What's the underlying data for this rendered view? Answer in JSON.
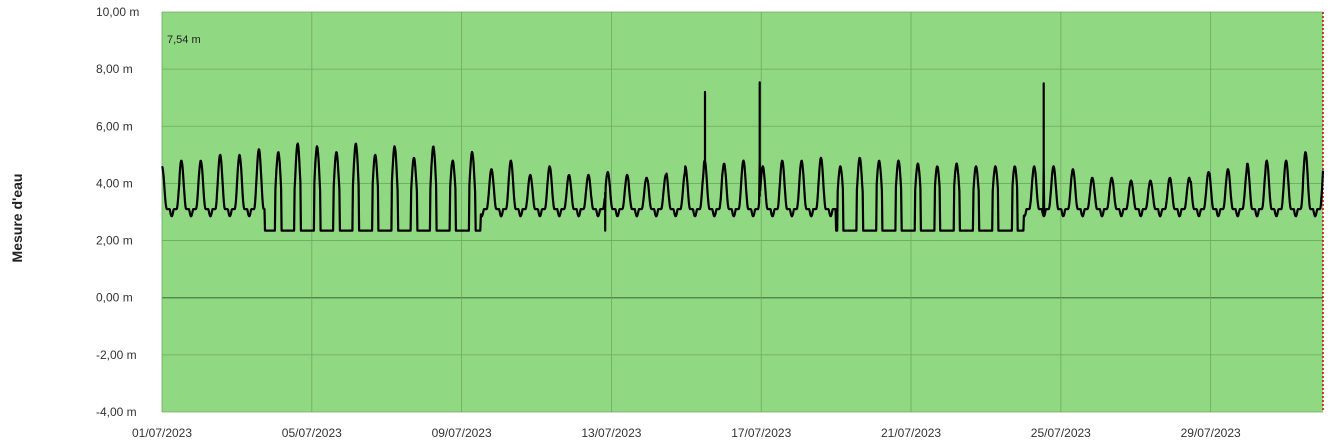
{
  "chart_data": {
    "type": "line",
    "title": "",
    "xlabel": "",
    "ylabel": "Mesure d'eau",
    "ylim": [
      -4,
      10
    ],
    "xlim": [
      "2023-07-01",
      "2023-08-01"
    ],
    "y_ticks": [
      {
        "value": 10,
        "label": "10,00 m"
      },
      {
        "value": 8,
        "label": "8,00 m"
      },
      {
        "value": 6,
        "label": "6,00 m"
      },
      {
        "value": 4,
        "label": "4,00 m"
      },
      {
        "value": 2,
        "label": "2,00 m"
      },
      {
        "value": 0,
        "label": "0,00 m"
      },
      {
        "value": -2,
        "label": "-2,00 m"
      },
      {
        "value": -4,
        "label": "-4,00 m"
      }
    ],
    "x_ticks": [
      {
        "date": "2023-07-01",
        "label": "01/07/2023"
      },
      {
        "date": "2023-07-05",
        "label": "05/07/2023"
      },
      {
        "date": "2023-07-09",
        "label": "09/07/2023"
      },
      {
        "date": "2023-07-13",
        "label": "13/07/2023"
      },
      {
        "date": "2023-07-17",
        "label": "17/07/2023"
      },
      {
        "date": "2023-07-21",
        "label": "21/07/2023"
      },
      {
        "date": "2023-07-25",
        "label": "25/07/2023"
      },
      {
        "date": "2023-07-29",
        "label": "29/07/2023"
      }
    ],
    "grid": true,
    "background_color": "#90d882",
    "grid_color": "#6fa863",
    "zero_line_color": "#4a7a44",
    "line_color": "#000000",
    "end_marker_color": "#cc0000",
    "annotation": "7,54 m",
    "series": [
      {
        "daily_peaks": [
          {
            "date": "2023-07-01",
            "peaks": [
              4.6,
              4.8
            ]
          },
          {
            "date": "2023-07-02",
            "peaks": [
              4.8,
              5.0
            ]
          },
          {
            "date": "2023-07-03",
            "peaks": [
              5.0,
              5.2
            ]
          },
          {
            "date": "2023-07-04",
            "peaks": [
              5.1,
              5.4
            ]
          },
          {
            "date": "2023-07-05",
            "peaks": [
              5.3,
              5.1
            ]
          },
          {
            "date": "2023-07-06",
            "peaks": [
              5.4,
              5.0
            ]
          },
          {
            "date": "2023-07-07",
            "peaks": [
              5.3,
              4.9
            ]
          },
          {
            "date": "2023-07-08",
            "peaks": [
              5.3,
              4.8
            ]
          },
          {
            "date": "2023-07-09",
            "peaks": [
              5.1,
              4.5
            ]
          },
          {
            "date": "2023-07-10",
            "peaks": [
              4.8,
              4.3
            ]
          },
          {
            "date": "2023-07-11",
            "peaks": [
              4.6,
              4.3
            ]
          },
          {
            "date": "2023-07-12",
            "peaks": [
              4.3,
              4.4
            ]
          },
          {
            "date": "2023-07-13",
            "peaks": [
              4.3,
              4.2
            ]
          },
          {
            "date": "2023-07-14",
            "peaks": [
              4.3,
              4.4
            ]
          },
          {
            "date": "2023-07-15",
            "peaks": [
              4.6,
              4.8
            ]
          },
          {
            "date": "2023-07-16",
            "peaks": [
              4.7,
              4.8
            ]
          },
          {
            "date": "2023-07-17",
            "peaks": [
              4.6,
              4.8
            ]
          },
          {
            "date": "2023-07-18",
            "peaks": [
              4.8,
              4.9
            ]
          },
          {
            "date": "2023-07-19",
            "peaks": [
              4.6,
              4.9
            ]
          },
          {
            "date": "2023-07-20",
            "peaks": [
              4.8,
              4.8
            ]
          },
          {
            "date": "2023-07-21",
            "peaks": [
              4.7,
              4.6
            ]
          },
          {
            "date": "2023-07-22",
            "peaks": [
              4.7,
              4.6
            ]
          },
          {
            "date": "2023-07-23",
            "peaks": [
              4.6,
              4.6
            ]
          },
          {
            "date": "2023-07-24",
            "peaks": [
              4.6,
              4.6
            ]
          },
          {
            "date": "2023-07-25",
            "peaks": [
              4.5,
              4.2
            ]
          },
          {
            "date": "2023-07-26",
            "peaks": [
              4.2,
              4.1
            ]
          },
          {
            "date": "2023-07-27",
            "peaks": [
              4.1,
              4.2
            ]
          },
          {
            "date": "2023-07-28",
            "peaks": [
              4.2,
              4.4
            ]
          },
          {
            "date": "2023-07-29",
            "peaks": [
              4.5,
              4.5
            ]
          },
          {
            "date": "2023-07-30",
            "peaks": [
              4.7,
              4.8
            ]
          },
          {
            "date": "2023-07-31",
            "peaks": [
              4.8,
              5.1
            ]
          }
        ],
        "troughs_min": 2.35,
        "baseline_low": 3.1,
        "spikes": [
          {
            "date": "2023-07-15T12:00",
            "value": 7.2
          },
          {
            "date": "2023-07-16T23:00",
            "value": 7.54
          },
          {
            "date": "2023-07-24T13:00",
            "value": 7.5
          }
        ],
        "clipped_periods": [
          {
            "from": "2023-07-03T18:00",
            "to": "2023-07-09T12:00",
            "value": 2.35
          },
          {
            "from": "2023-07-19T00:00",
            "to": "2023-07-24T00:00",
            "value": 2.35
          }
        ],
        "dip": {
          "date": "2023-07-12T20:00",
          "value": 2.35
        }
      }
    ]
  }
}
